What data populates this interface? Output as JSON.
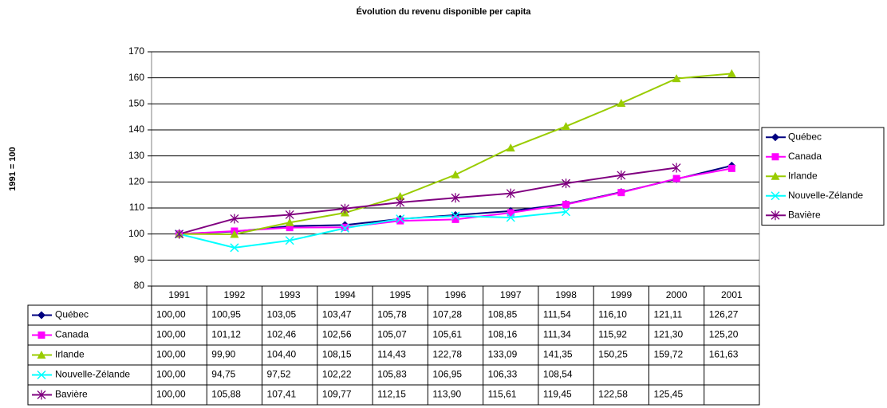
{
  "chart_data": {
    "type": "line",
    "title": "Évolution du revenu disponible per capita",
    "y_label": "1991 = 100",
    "categories": [
      "1991",
      "1992",
      "1993",
      "1994",
      "1995",
      "1996",
      "1997",
      "1998",
      "1999",
      "2000",
      "2001"
    ],
    "ylim": [
      80,
      170
    ],
    "yticks": [
      80,
      90,
      100,
      110,
      120,
      130,
      140,
      150,
      160,
      170
    ],
    "grid": true,
    "legend": "right",
    "series": [
      {
        "name": "Québec",
        "color": "#000080",
        "marker": "diamond",
        "values": [
          100.0,
          100.95,
          103.05,
          103.47,
          105.78,
          107.28,
          108.85,
          111.54,
          116.1,
          121.11,
          126.27
        ],
        "value_labels": [
          "100,00",
          "100,95",
          "103,05",
          "103,47",
          "105,78",
          "107,28",
          "108,85",
          "111,54",
          "116,10",
          "121,11",
          "126,27"
        ]
      },
      {
        "name": "Canada",
        "color": "#ff00ff",
        "marker": "square",
        "values": [
          100.0,
          101.12,
          102.46,
          102.56,
          105.07,
          105.61,
          108.16,
          111.34,
          115.92,
          121.3,
          125.2
        ],
        "value_labels": [
          "100,00",
          "101,12",
          "102,46",
          "102,56",
          "105,07",
          "105,61",
          "108,16",
          "111,34",
          "115,92",
          "121,30",
          "125,20"
        ]
      },
      {
        "name": "Irlande",
        "color": "#99cc00",
        "marker": "triangle",
        "values": [
          100.0,
          99.9,
          104.4,
          108.15,
          114.43,
          122.78,
          133.09,
          141.35,
          150.25,
          159.72,
          161.63
        ],
        "value_labels": [
          "100,00",
          "99,90",
          "104,40",
          "108,15",
          "114,43",
          "122,78",
          "133,09",
          "141,35",
          "150,25",
          "159,72",
          "161,63"
        ]
      },
      {
        "name": "Nouvelle-Zélande",
        "color": "#00ffff",
        "marker": "x",
        "values": [
          100.0,
          94.75,
          97.52,
          102.22,
          105.83,
          106.95,
          106.33,
          108.54,
          null,
          null,
          null
        ],
        "value_labels": [
          "100,00",
          "94,75",
          "97,52",
          "102,22",
          "105,83",
          "106,95",
          "106,33",
          "108,54",
          null,
          null,
          null
        ]
      },
      {
        "name": "Bavière",
        "color": "#800080",
        "marker": "star",
        "values": [
          100.0,
          105.88,
          107.41,
          109.77,
          112.15,
          113.9,
          115.61,
          119.45,
          122.58,
          125.45,
          null
        ],
        "value_labels": [
          "100,00",
          "105,88",
          "107,41",
          "109,77",
          "112,15",
          "113,90",
          "115,61",
          "119,45",
          "122,58",
          "125,45",
          null
        ]
      }
    ]
  }
}
